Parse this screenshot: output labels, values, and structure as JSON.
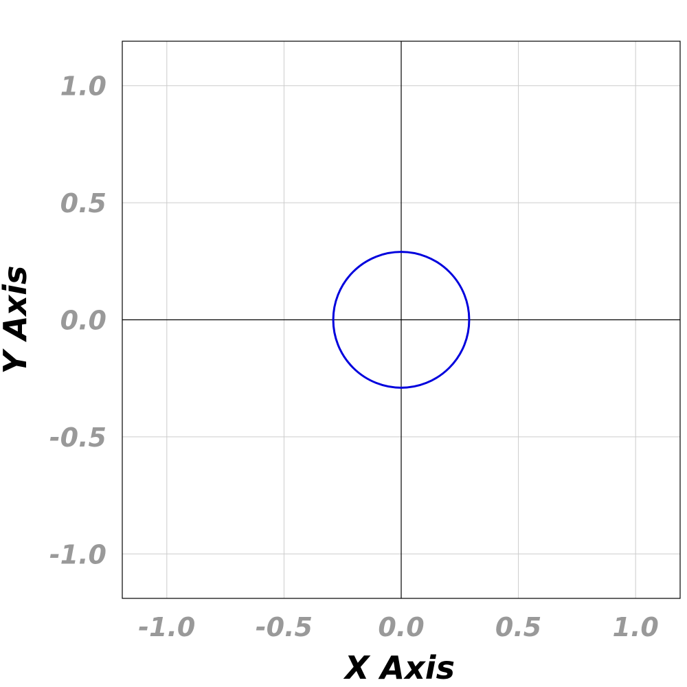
{
  "chart_data": {
    "type": "line",
    "title": "",
    "xlabel": "X Axis",
    "ylabel": "Y Axis",
    "xlim": [
      -1.19,
      1.19
    ],
    "ylim": [
      -1.19,
      1.19
    ],
    "xticks": [
      -1.0,
      -0.5,
      0.0,
      0.5,
      1.0
    ],
    "yticks": [
      -1.0,
      -0.5,
      0.0,
      0.5,
      1.0
    ],
    "xtick_labels": [
      "-1.0",
      "-0.5",
      "0.0",
      "0.5",
      "1.0"
    ],
    "ytick_labels": [
      "-1.0",
      "-0.5",
      "0.0",
      "0.5",
      "1.0"
    ],
    "grid": true,
    "zero_lines": true,
    "series": [
      {
        "shape": "circle",
        "center": [
          0.0,
          0.0
        ],
        "radius": 0.29,
        "color": "#0000dd"
      }
    ]
  }
}
